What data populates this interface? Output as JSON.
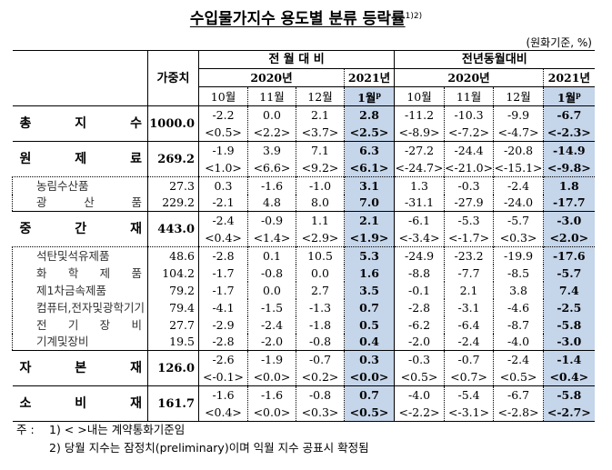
{
  "title": "수입물가지수 용도별 분류 등락률",
  "title_sup": "1)2)",
  "unit": "(원화기준, %)",
  "header": {
    "weight": "가중치",
    "mom": "전 월 대 비",
    "yoy": "전년동월대비",
    "year2020": "2020년",
    "year2021": "2021년",
    "months": [
      "10월",
      "11월",
      "12월",
      "1월"
    ],
    "prelim_mark": "p"
  },
  "colors": {
    "highlight": "#c5d5ea"
  },
  "rows": [
    {
      "label": "총 지 수",
      "type": "major",
      "weight": "1000.0",
      "mom": [
        "-2.2",
        "0.0",
        "2.1",
        "2.8"
      ],
      "mom_c": [
        "<0.5>",
        "<2.2>",
        "<3.7>",
        "<2.5>"
      ],
      "yoy": [
        "-11.2",
        "-10.3",
        "-9.9",
        "-6.7"
      ],
      "yoy_c": [
        "<-8.9>",
        "<-7.2>",
        "<-4.7>",
        "<-2.3>"
      ]
    },
    {
      "label": "원 제 료",
      "type": "major",
      "weight": "269.2",
      "mom": [
        "-1.9",
        "3.9",
        "7.1",
        "6.3"
      ],
      "mom_c": [
        "<1.0>",
        "<6.6>",
        "<9.2>",
        "<6.1>"
      ],
      "yoy": [
        "-27.2",
        "-24.4",
        "-20.8",
        "-14.9"
      ],
      "yoy_c": [
        "<-24.7>",
        "<-21.0>",
        "<-15.1>",
        "<-9.8>"
      ]
    },
    {
      "label": "농림수산품",
      "type": "sub",
      "weight": "27.3",
      "mom": [
        "0.3",
        "-1.6",
        "-1.0",
        "3.1"
      ],
      "yoy": [
        "1.3",
        "-0.3",
        "-2.4",
        "1.8"
      ]
    },
    {
      "label": "광 산 품",
      "type": "sub",
      "weight": "229.2",
      "mom": [
        "-2.1",
        "4.8",
        "8.0",
        "7.0"
      ],
      "yoy": [
        "-31.1",
        "-27.9",
        "-24.0",
        "-17.7"
      ]
    },
    {
      "label": "중 간 재",
      "type": "major",
      "weight": "443.0",
      "mom": [
        "-2.4",
        "-0.9",
        "1.1",
        "2.1"
      ],
      "mom_c": [
        "<0.4>",
        "<1.4>",
        "<2.9>",
        "<1.9>"
      ],
      "yoy": [
        "-6.1",
        "-5.3",
        "-5.7",
        "-3.0"
      ],
      "yoy_c": [
        "<-3.4>",
        "<-1.7>",
        "<0.3>",
        "<2.0>"
      ]
    },
    {
      "label": "석탄및석유제품",
      "type": "sub",
      "weight": "48.6",
      "mom": [
        "-2.8",
        "0.1",
        "10.5",
        "5.3"
      ],
      "yoy": [
        "-24.9",
        "-23.2",
        "-19.9",
        "-17.6"
      ]
    },
    {
      "label": "화 학 제 품",
      "type": "sub",
      "weight": "104.2",
      "mom": [
        "-1.7",
        "-0.8",
        "0.0",
        "1.6"
      ],
      "yoy": [
        "-8.8",
        "-7.7",
        "-8.5",
        "-5.7"
      ]
    },
    {
      "label": "제1차금속제품",
      "type": "sub",
      "weight": "79.2",
      "mom": [
        "-1.7",
        "0.0",
        "2.7",
        "3.5"
      ],
      "yoy": [
        "-0.1",
        "2.1",
        "3.8",
        "7.4"
      ]
    },
    {
      "label": "컴퓨터,전자및광학기기",
      "type": "sub",
      "weight": "79.4",
      "mom": [
        "-4.1",
        "-1.5",
        "-1.3",
        "0.7"
      ],
      "yoy": [
        "-2.8",
        "-3.1",
        "-4.6",
        "-2.5"
      ]
    },
    {
      "label": "전 기 장 비",
      "type": "sub",
      "weight": "27.7",
      "mom": [
        "-2.9",
        "-2.4",
        "-1.8",
        "0.5"
      ],
      "yoy": [
        "-6.2",
        "-6.4",
        "-8.7",
        "-5.8"
      ]
    },
    {
      "label": "기계및장비",
      "type": "sub",
      "weight": "19.5",
      "mom": [
        "-2.8",
        "-2.0",
        "-0.8",
        "0.4"
      ],
      "yoy": [
        "-2.0",
        "-2.4",
        "-4.0",
        "-3.0"
      ]
    },
    {
      "label": "자 본 재",
      "type": "major",
      "weight": "126.0",
      "mom": [
        "-2.6",
        "-1.9",
        "-0.7",
        "0.3"
      ],
      "mom_c": [
        "<-0.1>",
        "<0.0>",
        "<0.2>",
        "<0.0>"
      ],
      "yoy": [
        "-0.3",
        "-0.7",
        "-2.4",
        "-1.4"
      ],
      "yoy_c": [
        "<0.5>",
        "<0.7>",
        "<0.5>",
        "<0.4>"
      ]
    },
    {
      "label": "소 비 재",
      "type": "major",
      "weight": "161.7",
      "mom": [
        "-1.6",
        "-1.6",
        "-0.8",
        "0.7"
      ],
      "mom_c": [
        "<0.4>",
        "<0.0>",
        "<0.3>",
        "<0.5>"
      ],
      "yoy": [
        "-4.0",
        "-5.4",
        "-6.7",
        "-5.8"
      ],
      "yoy_c": [
        "<-2.2>",
        "<-3.1>",
        "<-2.8>",
        "<-2.7>"
      ]
    }
  ],
  "notes": {
    "prefix": "주 :",
    "items": [
      "1) < >내는 계약통화기준임",
      "2) 당월 지수는 잠정치(preliminary)이며 익월 지수 공표시 확정됨"
    ]
  }
}
